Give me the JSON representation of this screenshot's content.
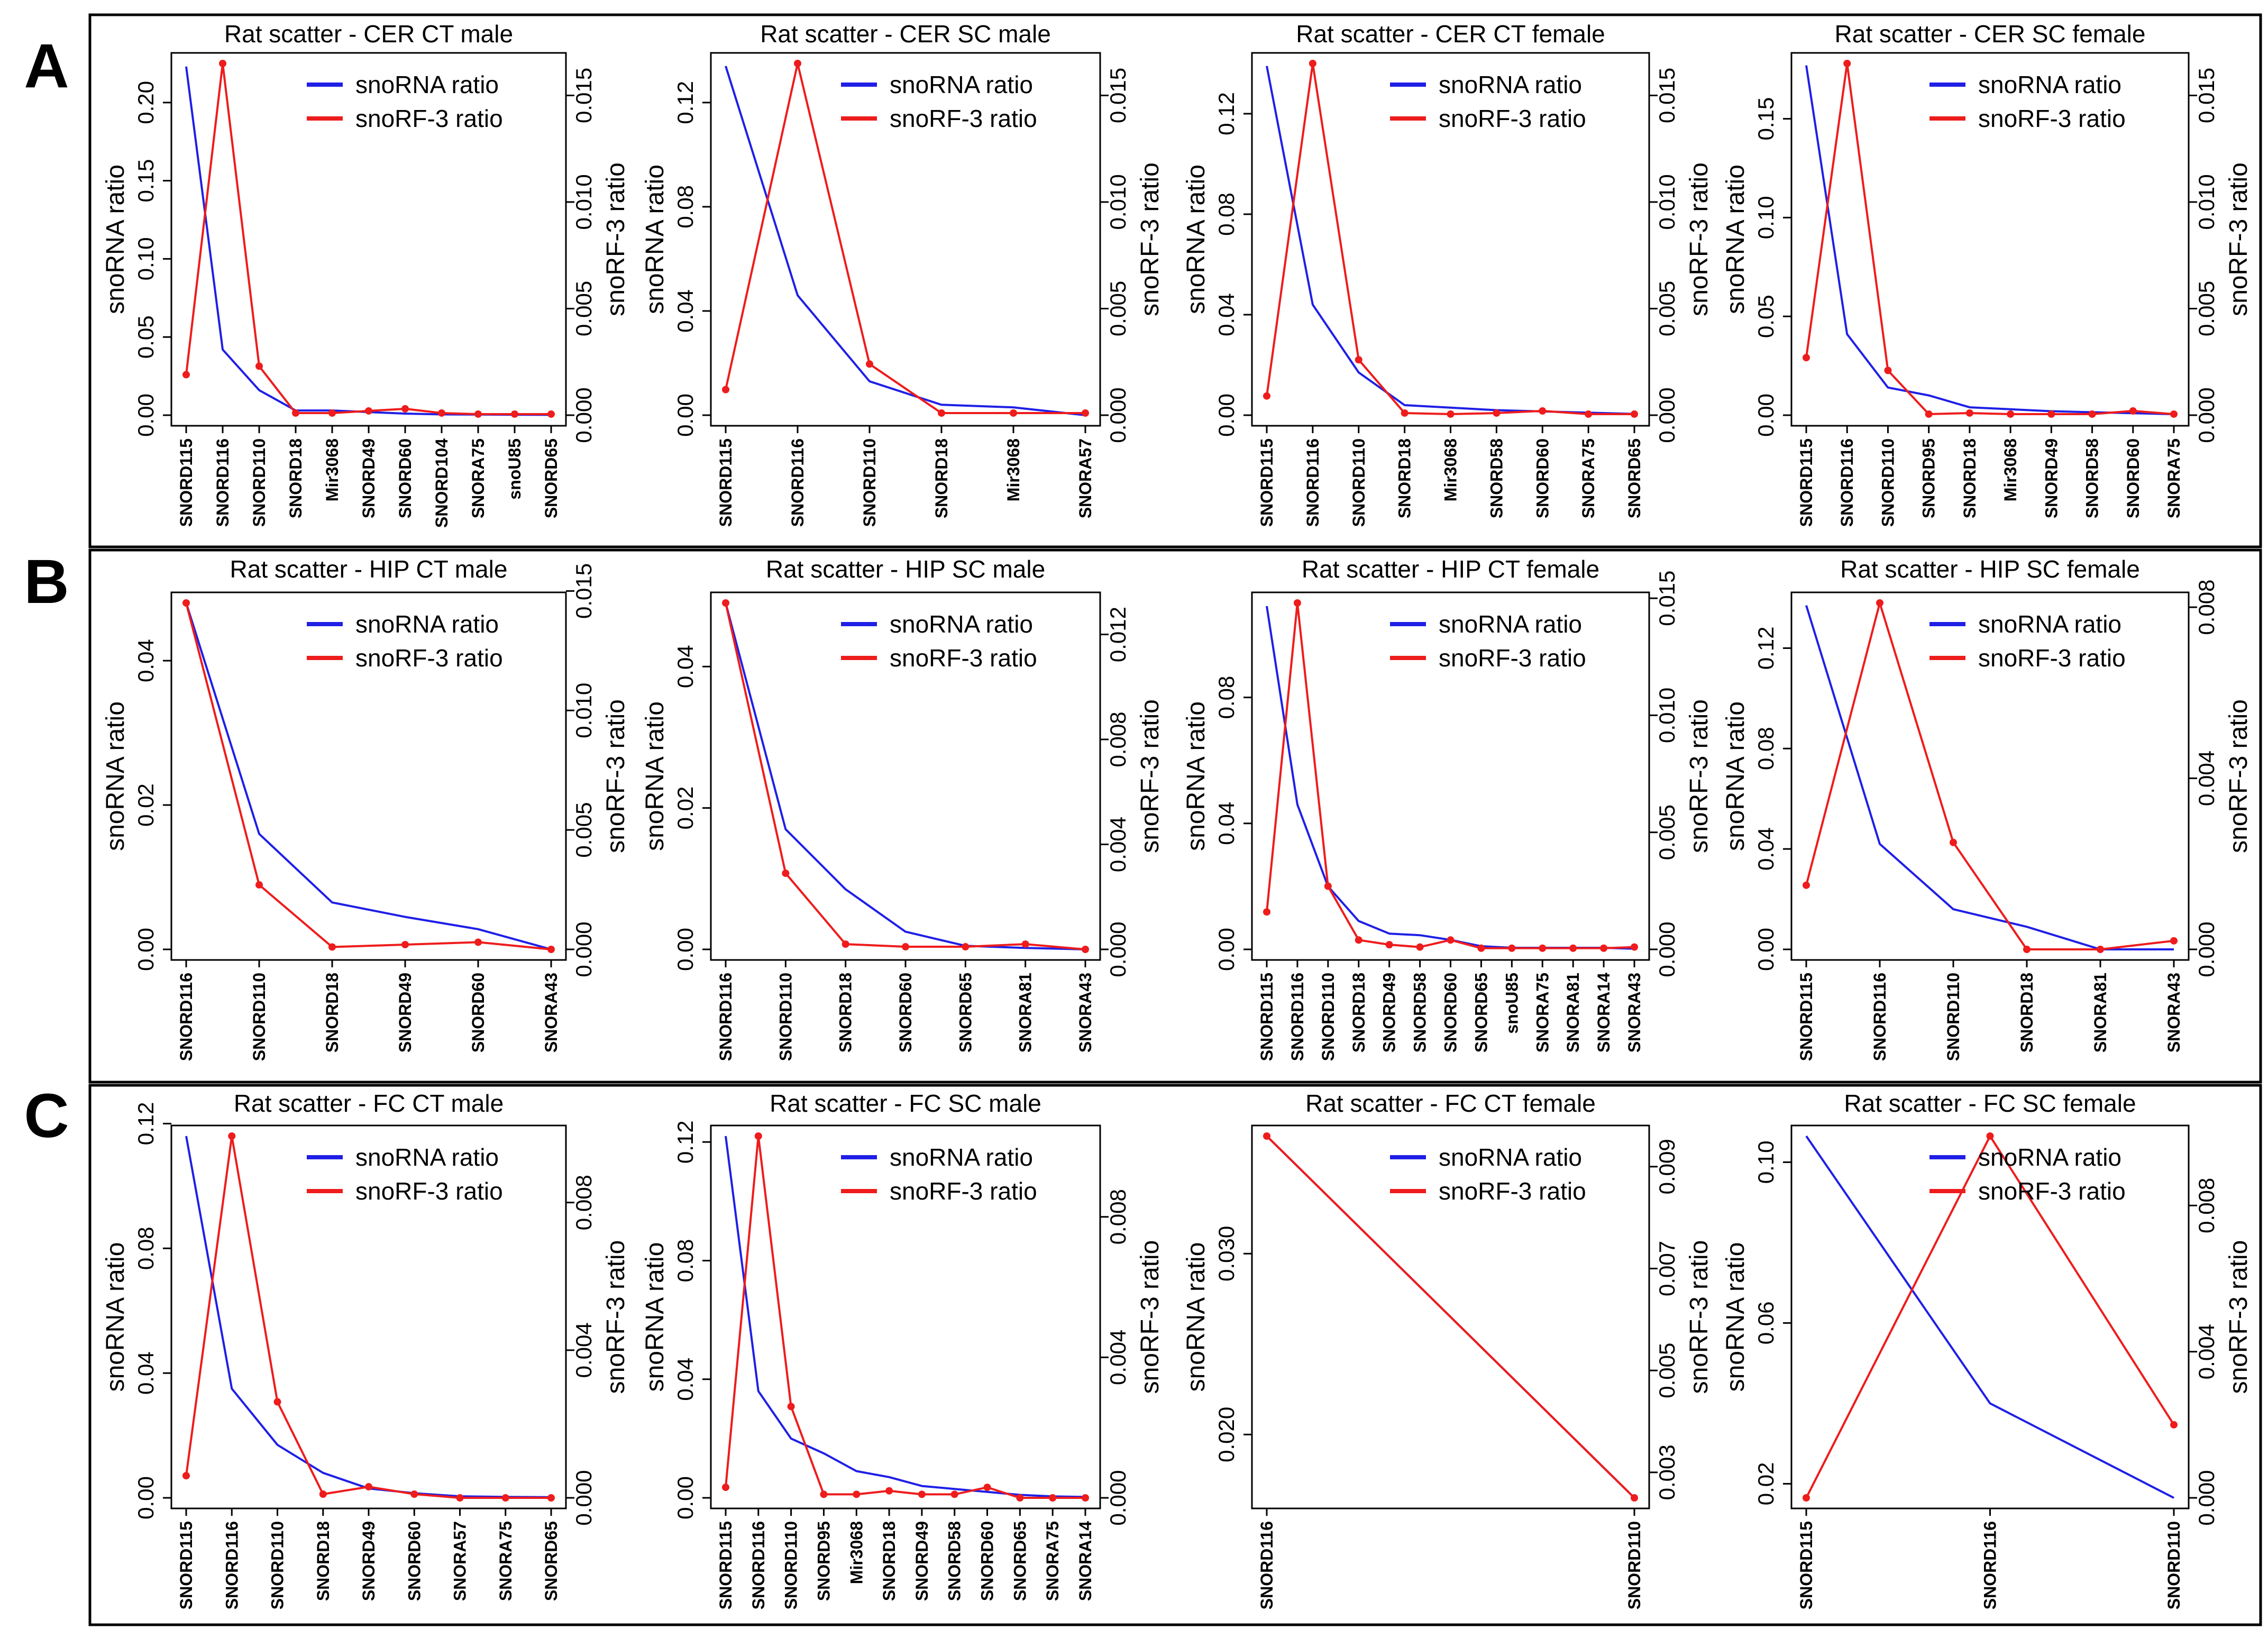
{
  "figure": {
    "panel_labels": [
      "A",
      "B",
      "C"
    ],
    "legend": {
      "snorna_label": "snoRNA ratio",
      "snorf_label": "snoRF-3 ratio"
    },
    "axis_labels": {
      "left": "snoRNA ratio",
      "right": "snoRF-3 ratio"
    },
    "colors": {
      "snorna": "#1f1fe6",
      "snorf": "#ee1c1c",
      "axis": "#000000",
      "frame": "#000000"
    }
  },
  "chart_data": [
    {
      "type": "line",
      "title": "Rat scatter - CER CT male",
      "categories": [
        "SNORD115",
        "SNORD116",
        "SNORD110",
        "SNORD18",
        "Mir3068",
        "SNORD49",
        "SNORD60",
        "SNORD104",
        "SNORA75",
        "snoU85",
        "SNORD65"
      ],
      "left": {
        "label": "snoRNA ratio",
        "ylim": [
          0,
          0.225
        ],
        "ticks": [
          0,
          0.05,
          0.1,
          0.15,
          0.2
        ],
        "tick_labels": [
          "0.00",
          "0.05",
          "0.10",
          "0.15",
          "0.20"
        ]
      },
      "right": {
        "label": "snoRF-3 ratio",
        "ylim": [
          0,
          0.0165
        ],
        "ticks": [
          0,
          0.005,
          0.01,
          0.015
        ],
        "tick_labels": [
          "0.000",
          "0.005",
          "0.010",
          "0.015"
        ]
      },
      "series": [
        {
          "name": "snoRNA ratio",
          "axis": "left",
          "markers": false,
          "values": [
            0.223,
            0.042,
            0.016,
            0.003,
            0.003,
            0.002,
            0.001,
            0.0005,
            0.0004,
            0.0003,
            0.0002
          ]
        },
        {
          "name": "snoRF-3 ratio",
          "axis": "right",
          "markers": true,
          "values": [
            0.0019,
            0.0165,
            0.0023,
            0.0001,
            0.0001,
            0.0002,
            0.0003,
            0.0001,
            5e-05,
            5e-05,
            5e-05
          ]
        }
      ]
    },
    {
      "type": "line",
      "title": "Rat scatter - CER SC male",
      "categories": [
        "SNORD115",
        "SNORD116",
        "SNORD110",
        "SNORD18",
        "Mir3068",
        "SNORA57"
      ],
      "left": {
        "label": "snoRNA ratio",
        "ylim": [
          0,
          0.135
        ],
        "ticks": [
          0,
          0.04,
          0.08,
          0.12
        ],
        "tick_labels": [
          "0.00",
          "0.04",
          "0.08",
          "0.12"
        ]
      },
      "right": {
        "label": "snoRF-3 ratio",
        "ylim": [
          0,
          0.0165
        ],
        "ticks": [
          0,
          0.005,
          0.01,
          0.015
        ],
        "tick_labels": [
          "0.000",
          "0.005",
          "0.010",
          "0.015"
        ]
      },
      "series": [
        {
          "name": "snoRNA ratio",
          "axis": "left",
          "markers": false,
          "values": [
            0.134,
            0.046,
            0.013,
            0.004,
            0.003,
            0.0
          ]
        },
        {
          "name": "snoRF-3 ratio",
          "axis": "right",
          "markers": true,
          "values": [
            0.0012,
            0.0165,
            0.0024,
            0.0001,
            0.0001,
            0.0001
          ]
        }
      ]
    },
    {
      "type": "line",
      "title": "Rat scatter - CER CT female",
      "categories": [
        "SNORD115",
        "SNORD116",
        "SNORD110",
        "SNORD18",
        "Mir3068",
        "SNORD58",
        "SNORD60",
        "SNORA75",
        "SNORD65"
      ],
      "left": {
        "label": "snoRNA ratio",
        "ylim": [
          0,
          0.14
        ],
        "ticks": [
          0,
          0.04,
          0.08,
          0.12
        ],
        "tick_labels": [
          "0.00",
          "0.04",
          "0.08",
          "0.12"
        ]
      },
      "right": {
        "label": "snoRF-3 ratio",
        "ylim": [
          0,
          0.0165
        ],
        "ticks": [
          0,
          0.005,
          0.01,
          0.015
        ],
        "tick_labels": [
          "0.000",
          "0.005",
          "0.010",
          "0.015"
        ]
      },
      "series": [
        {
          "name": "snoRNA ratio",
          "axis": "left",
          "markers": false,
          "values": [
            0.139,
            0.044,
            0.017,
            0.004,
            0.003,
            0.002,
            0.0015,
            0.001,
            0.0005
          ]
        },
        {
          "name": "snoRF-3 ratio",
          "axis": "right",
          "markers": true,
          "values": [
            0.0009,
            0.0165,
            0.0026,
            0.0001,
            5e-05,
            0.0001,
            0.0002,
            5e-05,
            5e-05
          ]
        }
      ]
    },
    {
      "type": "line",
      "title": "Rat scatter - CER SC female",
      "categories": [
        "SNORD115",
        "SNORD116",
        "SNORD110",
        "SNORD95",
        "SNORD18",
        "Mir3068",
        "SNORD49",
        "SNORD58",
        "SNORD60",
        "SNORA75"
      ],
      "left": {
        "label": "snoRNA ratio",
        "ylim": [
          0,
          0.178
        ],
        "ticks": [
          0,
          0.05,
          0.1,
          0.15
        ],
        "tick_labels": [
          "0.00",
          "0.05",
          "0.10",
          "0.15"
        ]
      },
      "right": {
        "label": "snoRF-3 ratio",
        "ylim": [
          0,
          0.0165
        ],
        "ticks": [
          0,
          0.005,
          0.01,
          0.015
        ],
        "tick_labels": [
          "0.000",
          "0.005",
          "0.010",
          "0.015"
        ]
      },
      "series": [
        {
          "name": "snoRNA ratio",
          "axis": "left",
          "markers": false,
          "values": [
            0.177,
            0.041,
            0.014,
            0.01,
            0.004,
            0.003,
            0.002,
            0.0015,
            0.001,
            0.0005
          ]
        },
        {
          "name": "snoRF-3 ratio",
          "axis": "right",
          "markers": true,
          "values": [
            0.0027,
            0.0165,
            0.0021,
            5e-05,
            0.0001,
            5e-05,
            5e-05,
            5e-05,
            0.0002,
            5e-05
          ]
        }
      ]
    },
    {
      "type": "line",
      "title": "Rat scatter - HIP CT male",
      "categories": [
        "SNORD116",
        "SNORD110",
        "SNORD18",
        "SNORD49",
        "SNORD60",
        "SNORA43"
      ],
      "left": {
        "label": "snoRNA ratio",
        "ylim": [
          0,
          0.048
        ],
        "ticks": [
          0,
          0.02,
          0.04
        ],
        "tick_labels": [
          "0.00",
          "0.02",
          "0.04"
        ]
      },
      "right": {
        "label": "snoRF-3 ratio",
        "ylim": [
          0,
          0.0145
        ],
        "ticks": [
          0,
          0.005,
          0.01,
          0.015
        ],
        "tick_labels": [
          "0.000",
          "0.005",
          "0.010",
          "0.015"
        ]
      },
      "series": [
        {
          "name": "snoRNA ratio",
          "axis": "left",
          "markers": false,
          "values": [
            0.048,
            0.016,
            0.0065,
            0.0045,
            0.0028,
            0.0
          ]
        },
        {
          "name": "snoRF-3 ratio",
          "axis": "right",
          "markers": true,
          "values": [
            0.0145,
            0.0027,
            0.0001,
            0.0002,
            0.0003,
            0.0
          ]
        }
      ]
    },
    {
      "type": "line",
      "title": "Rat scatter - HIP SC male",
      "categories": [
        "SNORD116",
        "SNORD110",
        "SNORD18",
        "SNORD60",
        "SNORD65",
        "SNORA81",
        "SNORA43"
      ],
      "left": {
        "label": "snoRNA ratio",
        "ylim": [
          0,
          0.049
        ],
        "ticks": [
          0,
          0.02,
          0.04
        ],
        "tick_labels": [
          "0.00",
          "0.02",
          "0.04"
        ]
      },
      "right": {
        "label": "snoRF-3 ratio",
        "ylim": [
          0,
          0.0132
        ],
        "ticks": [
          0,
          0.004,
          0.008,
          0.012
        ],
        "tick_labels": [
          "0.000",
          "0.004",
          "0.008",
          "0.012"
        ]
      },
      "series": [
        {
          "name": "snoRNA ratio",
          "axis": "left",
          "markers": false,
          "values": [
            0.049,
            0.017,
            0.0085,
            0.0025,
            0.0005,
            0.0002,
            0.0
          ]
        },
        {
          "name": "snoRF-3 ratio",
          "axis": "right",
          "markers": true,
          "values": [
            0.0132,
            0.0029,
            0.0002,
            0.0001,
            0.0001,
            0.0002,
            0.0
          ]
        }
      ]
    },
    {
      "type": "line",
      "title": "Rat scatter - HIP CT female",
      "categories": [
        "SNORD115",
        "SNORD116",
        "SNORD110",
        "SNORD18",
        "SNORD49",
        "SNORD58",
        "SNORD60",
        "SNORD65",
        "snoU85",
        "SNORA75",
        "SNORA81",
        "SNORA14",
        "SNORA43"
      ],
      "left": {
        "label": "snoRNA ratio",
        "ylim": [
          0,
          0.11
        ],
        "ticks": [
          0,
          0.04,
          0.08
        ],
        "tick_labels": [
          "0.00",
          "0.04",
          "0.08"
        ]
      },
      "right": {
        "label": "snoRF-3 ratio",
        "ylim": [
          0,
          0.0148
        ],
        "ticks": [
          0,
          0.005,
          0.01,
          0.015
        ],
        "tick_labels": [
          "0.000",
          "0.005",
          "0.010",
          "0.015"
        ]
      },
      "series": [
        {
          "name": "snoRNA ratio",
          "axis": "left",
          "markers": false,
          "values": [
            0.109,
            0.046,
            0.02,
            0.009,
            0.005,
            0.0045,
            0.003,
            0.001,
            0.0005,
            0.0005,
            0.0005,
            0.0005,
            0.0002
          ]
        },
        {
          "name": "snoRF-3 ratio",
          "axis": "right",
          "markers": true,
          "values": [
            0.0016,
            0.0148,
            0.0027,
            0.0004,
            0.0002,
            0.0001,
            0.0004,
            5e-05,
            5e-05,
            5e-05,
            5e-05,
            5e-05,
            0.0001
          ]
        }
      ]
    },
    {
      "type": "line",
      "title": "Rat scatter - HIP SC female",
      "categories": [
        "SNORD115",
        "SNORD116",
        "SNORD110",
        "SNORD18",
        "SNORA81",
        "SNORA43"
      ],
      "left": {
        "label": "snoRNA ratio",
        "ylim": [
          0,
          0.138
        ],
        "ticks": [
          0,
          0.04,
          0.08,
          0.12
        ],
        "tick_labels": [
          "0.00",
          "0.04",
          "0.08",
          "0.12"
        ]
      },
      "right": {
        "label": "snoRF-3 ratio",
        "ylim": [
          0,
          0.0081
        ],
        "ticks": [
          0,
          0.004,
          0.008
        ],
        "tick_labels": [
          "0.000",
          "0.004",
          "0.008"
        ]
      },
      "series": [
        {
          "name": "snoRNA ratio",
          "axis": "left",
          "markers": false,
          "values": [
            0.137,
            0.042,
            0.016,
            0.009,
            0.0,
            0.0
          ]
        },
        {
          "name": "snoRF-3 ratio",
          "axis": "right",
          "markers": true,
          "values": [
            0.0015,
            0.0081,
            0.0025,
            0.0,
            0.0,
            0.0002
          ]
        }
      ]
    },
    {
      "type": "line",
      "title": "Rat scatter - FC CT male",
      "categories": [
        "SNORD115",
        "SNORD116",
        "SNORD110",
        "SNORD18",
        "SNORD49",
        "SNORD60",
        "SNORA57",
        "SNORA75",
        "SNORD65"
      ],
      "left": {
        "label": "snoRNA ratio",
        "ylim": [
          0,
          0.116
        ],
        "ticks": [
          0,
          0.04,
          0.08,
          0.12
        ],
        "tick_labels": [
          "0.00",
          "0.04",
          "0.08",
          "0.12"
        ]
      },
      "right": {
        "label": "snoRF-3 ratio",
        "ylim": [
          0,
          0.0098
        ],
        "ticks": [
          0,
          0.004,
          0.008
        ],
        "tick_labels": [
          "0.000",
          "0.004",
          "0.008"
        ]
      },
      "series": [
        {
          "name": "snoRNA ratio",
          "axis": "left",
          "markers": false,
          "values": [
            0.116,
            0.035,
            0.017,
            0.008,
            0.003,
            0.0015,
            0.0005,
            0.0003,
            0.0002
          ]
        },
        {
          "name": "snoRF-3 ratio",
          "axis": "right",
          "markers": true,
          "values": [
            0.0006,
            0.0098,
            0.0026,
            0.0001,
            0.0003,
            0.0001,
            0.0,
            0.0,
            0.0
          ]
        }
      ]
    },
    {
      "type": "line",
      "title": "Rat scatter - FC SC male",
      "categories": [
        "SNORD115",
        "SNORD116",
        "SNORD110",
        "SNORD95",
        "Mir3068",
        "SNORD18",
        "SNORD49",
        "SNORD58",
        "SNORD60",
        "SNORD65",
        "SNORA75",
        "SNORA14"
      ],
      "left": {
        "label": "snoRNA ratio",
        "ylim": [
          0,
          0.122
        ],
        "ticks": [
          0,
          0.04,
          0.08,
          0.12
        ],
        "tick_labels": [
          "0.00",
          "0.04",
          "0.08",
          "0.12"
        ]
      },
      "right": {
        "label": "snoRF-3 ratio",
        "ylim": [
          0,
          0.0103
        ],
        "ticks": [
          0,
          0.004,
          0.008
        ],
        "tick_labels": [
          "0.000",
          "0.004",
          "0.008"
        ]
      },
      "series": [
        {
          "name": "snoRNA ratio",
          "axis": "left",
          "markers": false,
          "values": [
            0.122,
            0.036,
            0.02,
            0.015,
            0.009,
            0.007,
            0.004,
            0.003,
            0.002,
            0.001,
            0.0005,
            0.0003
          ]
        },
        {
          "name": "snoRF-3 ratio",
          "axis": "right",
          "markers": true,
          "values": [
            0.0003,
            0.0103,
            0.0026,
            0.0001,
            0.0001,
            0.0002,
            0.0001,
            0.0001,
            0.0003,
            0.0,
            0.0,
            0.0
          ]
        }
      ]
    },
    {
      "type": "line",
      "title": "Rat scatter - FC CT female",
      "categories": [
        "SNORD116",
        "SNORD110"
      ],
      "left": {
        "label": "snoRNA ratio",
        "ylim": [
          0.0165,
          0.0365
        ],
        "ticks": [
          0.02,
          0.03
        ],
        "tick_labels": [
          "0.020",
          "0.030"
        ]
      },
      "right": {
        "label": "snoRF-3 ratio",
        "ylim": [
          0.0025,
          0.0096
        ],
        "ticks": [
          0.003,
          0.005,
          0.007,
          0.009
        ],
        "tick_labels": [
          "0.003",
          "0.005",
          "0.007",
          "0.009"
        ]
      },
      "series": [
        {
          "name": "snoRNA ratio",
          "axis": "left",
          "markers": false,
          "values": [
            0.0365,
            0.0165
          ]
        },
        {
          "name": "snoRF-3 ratio",
          "axis": "right",
          "markers": true,
          "values": [
            0.0096,
            0.0025
          ]
        }
      ]
    },
    {
      "type": "line",
      "title": "Rat scatter - FC SC female",
      "categories": [
        "SNORD115",
        "SNORD116",
        "SNORD110"
      ],
      "left": {
        "label": "snoRNA ratio",
        "ylim": [
          0.0165,
          0.1065
        ],
        "ticks": [
          0.02,
          0.06,
          0.1
        ],
        "tick_labels": [
          "0.02",
          "0.06",
          "0.10"
        ]
      },
      "right": {
        "label": "snoRF-3 ratio",
        "ylim": [
          0,
          0.0099
        ],
        "ticks": [
          0,
          0.004,
          0.008
        ],
        "tick_labels": [
          "0.000",
          "0.004",
          "0.008"
        ]
      },
      "series": [
        {
          "name": "snoRNA ratio",
          "axis": "left",
          "markers": false,
          "values": [
            0.1065,
            0.04,
            0.0165
          ]
        },
        {
          "name": "snoRF-3 ratio",
          "axis": "right",
          "markers": true,
          "values": [
            0.0,
            0.0099,
            0.002
          ]
        }
      ]
    }
  ]
}
